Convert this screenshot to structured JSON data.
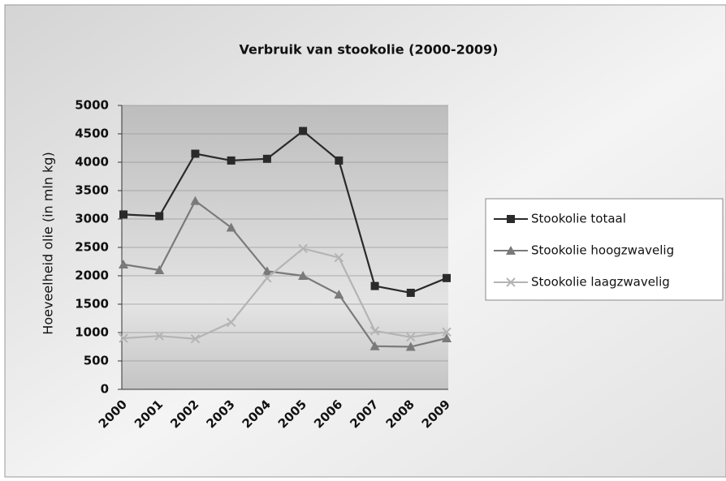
{
  "chart_data": {
    "type": "line",
    "title": "Verbruik van stookolie (2000-2009)",
    "y_label": "Hoeveelheid olie (in mln kg)",
    "categories": [
      "2000",
      "2001",
      "2002",
      "2003",
      "2004",
      "2005",
      "2006",
      "2007",
      "2008",
      "2009"
    ],
    "series": [
      {
        "name": "Stookolie totaal",
        "color": "#2a2a2a",
        "marker": "square",
        "values": [
          3080,
          3050,
          4150,
          4030,
          4060,
          4550,
          4030,
          1820,
          1700,
          1960
        ]
      },
      {
        "name": "Stookolie hoogzwavelig",
        "color": "#7a7a7a",
        "marker": "triangle",
        "values": [
          2200,
          2100,
          3320,
          2850,
          2080,
          2000,
          1670,
          760,
          750,
          900
        ]
      },
      {
        "name": "Stookolie laagzwavelig",
        "color": "#b4b4b4",
        "marker": "x",
        "values": [
          900,
          940,
          890,
          1180,
          1960,
          2480,
          2320,
          1030,
          920,
          1010
        ]
      }
    ],
    "ylim": [
      0,
      5000
    ],
    "yticks": [
      0,
      500,
      1000,
      1500,
      2000,
      2500,
      3000,
      3500,
      4000,
      4500,
      5000
    ],
    "grid": true,
    "legend": "right"
  }
}
